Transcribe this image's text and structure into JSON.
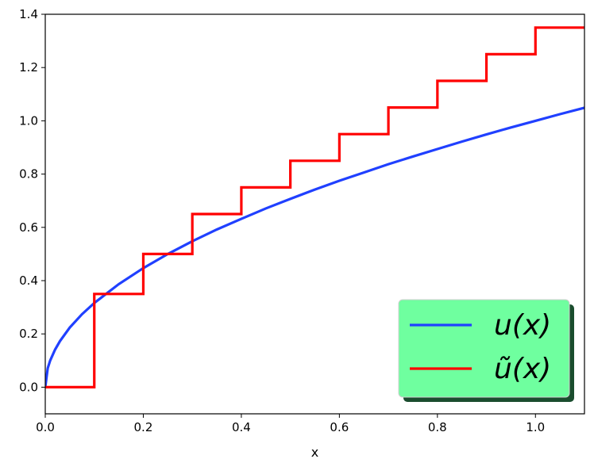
{
  "chart_data": {
    "type": "line",
    "title": "",
    "xlabel": "x",
    "ylabel": "",
    "xlim": [
      0.0,
      1.1
    ],
    "ylim": [
      -0.1,
      1.4
    ],
    "xticks": [
      0.0,
      0.2,
      0.4,
      0.6,
      0.8,
      1.0
    ],
    "xtick_labels": [
      "0.0",
      "0.2",
      "0.4",
      "0.6",
      "0.8",
      "1.0"
    ],
    "yticks": [
      0.0,
      0.2,
      0.4,
      0.6,
      0.8,
      1.0,
      1.2,
      1.4
    ],
    "ytick_labels": [
      "0.0",
      "0.2",
      "0.4",
      "0.6",
      "0.8",
      "1.0",
      "1.2",
      "1.4"
    ],
    "grid": false,
    "legend": {
      "placement": "lower right",
      "background": "#6fff9f",
      "shadow": "#1a4d2e",
      "entries": [
        "u(x)",
        "ũ(x)"
      ]
    },
    "series": [
      {
        "name": "u(x)",
        "color": "#2040ff",
        "style": "smooth",
        "x": [
          0.0,
          0.005,
          0.01,
          0.02,
          0.03,
          0.05,
          0.075,
          0.1,
          0.15,
          0.2,
          0.25,
          0.3,
          0.35,
          0.4,
          0.45,
          0.5,
          0.55,
          0.6,
          0.65,
          0.7,
          0.75,
          0.8,
          0.85,
          0.9,
          0.95,
          1.0,
          1.05,
          1.1
        ],
        "y": [
          0.0,
          0.071,
          0.1,
          0.141,
          0.173,
          0.224,
          0.274,
          0.316,
          0.387,
          0.447,
          0.5,
          0.548,
          0.592,
          0.632,
          0.671,
          0.707,
          0.742,
          0.775,
          0.806,
          0.837,
          0.866,
          0.894,
          0.922,
          0.949,
          0.975,
          1.0,
          1.025,
          1.049
        ]
      },
      {
        "name": "ũ(x)",
        "color": "#ff0000",
        "style": "step-post",
        "x": [
          0.0,
          0.1,
          0.2,
          0.3,
          0.4,
          0.5,
          0.6,
          0.7,
          0.8,
          0.9,
          1.0,
          1.1
        ],
        "y": [
          0.0,
          0.35,
          0.5,
          0.65,
          0.75,
          0.85,
          0.95,
          1.05,
          1.15,
          1.25,
          1.35,
          1.35
        ]
      }
    ]
  }
}
